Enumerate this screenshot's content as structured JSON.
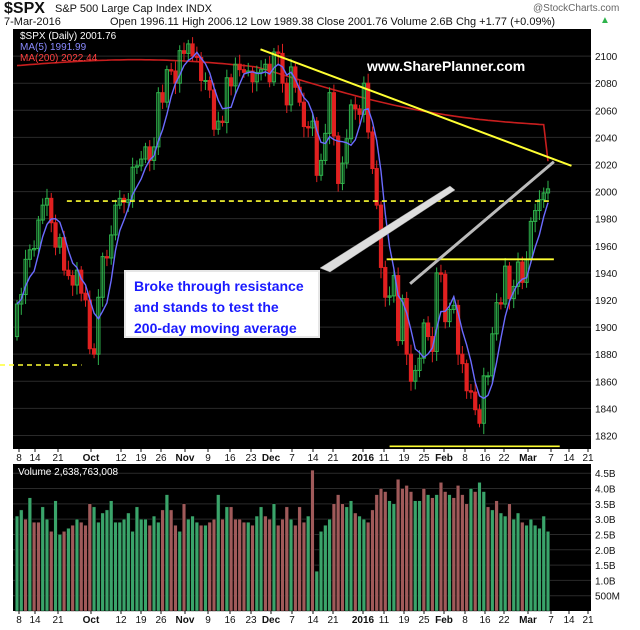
{
  "header": {
    "symbol": "$SPX",
    "name": "S&P 500 Large Cap Index",
    "exchange": "INDX",
    "credit": "@StockCharts.com",
    "date": "7-Mar-2016",
    "quote": "Open 1996.11  High 2006.12  Low 1989.38  Close 2001.76  Volume 2.6B  Chg +1.77 (+0.09%)",
    "change_icon": "up-triangle-icon"
  },
  "legend": {
    "price": "$SPX (Daily) 2001.76",
    "ma5": "MA(5) 1991.99",
    "ma200": "MA(200) 2022.44",
    "volume": "Volume 2,638,763,008"
  },
  "watermark": "www.SharePlanner.com",
  "annotation": [
    "Broke through resistance",
    "and stands to test the",
    "200-day moving average"
  ],
  "colors": {
    "background": "#000000",
    "up_candle": "#2eb34c",
    "down_candle": "#e02020",
    "ma5": "#6b6bff",
    "ma200": "#c81e1e",
    "trendline": "#ffff33",
    "volume_up": "#3aa46a",
    "volume_down": "#a05a5a",
    "annotation_text": "#1a1aff"
  },
  "chart_data": {
    "type": "candlestick",
    "price_axis": {
      "ticks": [
        1820,
        1840,
        1860,
        1880,
        1900,
        1920,
        1940,
        1960,
        1980,
        2000,
        2020,
        2040,
        2060,
        2080,
        2100
      ],
      "range": [
        1810,
        2120
      ]
    },
    "volume_axis": {
      "ticks": [
        "500M",
        "1.0B",
        "1.5B",
        "2.0B",
        "2.5B",
        "3.0B",
        "3.5B",
        "4.0B",
        "4.5B"
      ],
      "range": [
        0,
        4.8
      ]
    },
    "x_labels": [
      "8",
      "14",
      "21",
      "Oct",
      "12",
      "19",
      "26",
      "Nov",
      "9",
      "16",
      "23",
      "Dec",
      "7",
      "14",
      "21",
      "2016",
      "11",
      "19",
      "25",
      "Feb",
      "8",
      "16",
      "22",
      "Mar",
      "7",
      "14",
      "21"
    ],
    "bold_labels": [
      "Oct",
      "Nov",
      "Dec",
      "2016",
      "Feb",
      "Mar"
    ],
    "start_date": "2015-09-08",
    "end_date": "2016-03-07",
    "candles": [
      [
        1893,
        1917
      ],
      [
        1917,
        1924
      ],
      [
        1924,
        1950
      ],
      [
        1950,
        1957
      ],
      [
        1957,
        1958
      ],
      [
        1958,
        1979
      ],
      [
        1979,
        1990
      ],
      [
        1990,
        1995
      ],
      [
        1995,
        1977
      ],
      [
        1977,
        1959
      ],
      [
        1959,
        1966
      ],
      [
        1966,
        1942
      ],
      [
        1942,
        1938
      ],
      [
        1938,
        1931
      ],
      [
        1931,
        1942
      ],
      [
        1942,
        1925
      ],
      [
        1925,
        1920
      ],
      [
        1920,
        1884
      ],
      [
        1884,
        1880
      ],
      [
        1880,
        1922
      ],
      [
        1922,
        1952
      ],
      [
        1952,
        1951
      ],
      [
        1951,
        1968
      ],
      [
        1968,
        1990
      ],
      [
        1990,
        1995
      ],
      [
        1995,
        1992
      ],
      [
        1992,
        1994
      ],
      [
        1994,
        2018
      ],
      [
        2018,
        2019
      ],
      [
        2019,
        2024
      ],
      [
        2024,
        2033
      ],
      [
        2033,
        2023
      ],
      [
        2023,
        2033
      ],
      [
        2033,
        2073
      ],
      [
        2073,
        2066
      ],
      [
        2066,
        2090
      ],
      [
        2090,
        2089
      ],
      [
        2089,
        2080
      ],
      [
        2080,
        2104
      ],
      [
        2104,
        2102
      ],
      [
        2102,
        2109
      ],
      [
        2109,
        2100
      ],
      [
        2100,
        2099
      ],
      [
        2099,
        2082
      ],
      [
        2082,
        2082
      ],
      [
        2082,
        2075
      ],
      [
        2075,
        2046
      ],
      [
        2046,
        2052
      ],
      [
        2052,
        2051
      ],
      [
        2051,
        2084
      ],
      [
        2084,
        2078
      ],
      [
        2078,
        2094
      ],
      [
        2094,
        2090
      ],
      [
        2090,
        2088
      ],
      [
        2088,
        2089
      ],
      [
        2089,
        2081
      ],
      [
        2081,
        2088
      ],
      [
        2088,
        2090
      ],
      [
        2090,
        2094
      ],
      [
        2094,
        2081
      ],
      [
        2081,
        2103
      ],
      [
        2103,
        2102
      ],
      [
        2102,
        2080
      ],
      [
        2080,
        2064
      ],
      [
        2064,
        2092
      ],
      [
        2092,
        2077
      ],
      [
        2077,
        2066
      ],
      [
        2066,
        2048
      ],
      [
        2048,
        2047
      ],
      [
        2047,
        2052
      ],
      [
        2052,
        2012
      ],
      [
        2012,
        2023
      ],
      [
        2023,
        2043
      ],
      [
        2043,
        2073
      ],
      [
        2073,
        2041
      ],
      [
        2041,
        2006
      ],
      [
        2006,
        2021
      ],
      [
        2021,
        2039
      ],
      [
        2039,
        2064
      ],
      [
        2064,
        2061
      ],
      [
        2061,
        2057
      ],
      [
        2057,
        2080
      ],
      [
        2080,
        2044
      ],
      [
        2044,
        2017
      ],
      [
        2017,
        1990
      ],
      [
        1990,
        1944
      ],
      [
        1944,
        1922
      ],
      [
        1922,
        1923
      ],
      [
        1923,
        1938
      ],
      [
        1938,
        1890
      ],
      [
        1890,
        1921
      ],
      [
        1921,
        1880
      ],
      [
        1880,
        1860
      ],
      [
        1860,
        1868
      ],
      [
        1868,
        1877
      ],
      [
        1877,
        1903
      ],
      [
        1903,
        1893
      ],
      [
        1893,
        1882
      ],
      [
        1882,
        1940
      ],
      [
        1940,
        1939
      ],
      [
        1939,
        1904
      ],
      [
        1904,
        1913
      ],
      [
        1913,
        1916
      ],
      [
        1916,
        1880
      ],
      [
        1880,
        1873
      ],
      [
        1873,
        1853
      ],
      [
        1853,
        1852
      ],
      [
        1852,
        1839
      ],
      [
        1839,
        1829
      ],
      [
        1829,
        1864
      ],
      [
        1864,
        1864
      ],
      [
        1864,
        1895
      ],
      [
        1895,
        1918
      ],
      [
        1918,
        1917
      ],
      [
        1917,
        1945
      ],
      [
        1945,
        1921
      ],
      [
        1921,
        1930
      ],
      [
        1930,
        1948
      ],
      [
        1948,
        1933
      ],
      [
        1933,
        1950
      ],
      [
        1950,
        1978
      ],
      [
        1978,
        1986
      ],
      [
        1986,
        1994
      ],
      [
        1994,
        1999
      ],
      [
        1999,
        2002
      ]
    ],
    "volume_billions": [
      3.1,
      3.3,
      3.0,
      3.7,
      2.9,
      2.9,
      3.4,
      3.0,
      2.6,
      3.6,
      2.5,
      2.6,
      2.7,
      2.8,
      3.0,
      2.9,
      2.8,
      3.5,
      3.4,
      2.9,
      3.2,
      3.3,
      3.6,
      2.9,
      2.9,
      3.0,
      3.2,
      2.6,
      3.4,
      3.0,
      3.0,
      2.8,
      3.1,
      2.9,
      3.3,
      3.8,
      3.3,
      2.8,
      2.6,
      3.5,
      3.0,
      3.1,
      2.9,
      2.8,
      2.8,
      2.9,
      3.0,
      3.8,
      3.0,
      3.4,
      3.4,
      3.0,
      3.0,
      2.9,
      2.9,
      2.8,
      3.1,
      3.4,
      3.1,
      3.0,
      3.5,
      2.8,
      3.0,
      3.4,
      3.0,
      2.8,
      3.4,
      2.9,
      3.1,
      4.6,
      1.3,
      2.6,
      2.8,
      3.0,
      3.5,
      3.8,
      3.5,
      3.4,
      3.6,
      3.2,
      3.1,
      3.0,
      2.9,
      3.3,
      3.8,
      4.0,
      3.9,
      3.6,
      3.5,
      4.3,
      4.0,
      4.1,
      3.9,
      3.6,
      3.6,
      4.0,
      3.8,
      3.7,
      3.8,
      4.2,
      3.9,
      3.8,
      3.7,
      4.1,
      3.8,
      3.5,
      4.0,
      3.9,
      4.2,
      3.9,
      3.4,
      3.3,
      3.6,
      3.2,
      3.1,
      3.5,
      3.0,
      3.2,
      2.9,
      2.8,
      3.0,
      2.8,
      2.7,
      3.1,
      2.6
    ],
    "volume_colors": "g,g,r,g,r,r,g,g,r,g,g,r,g,r,g,r,r,r,g,g,g,g,g,g,g,g,g,g,g,g,g,r,g,g,r,g,r,r,g,r,g,g,g,r,g,r,r,g,r,g,r,r,r,r,g,r,g,g,r,r,g,r,r,r,g,r,r,r,g,r,g,g,g,g,r,r,r,g,g,r,g,g,r,r,r,r,r,g,g,r,r,r,r,g,g,r,g,r,g,r,r,g,r,r,r,r,g,r,g,g,r,g,r,g,g,r,g,g,r,g,g,g,g,g,g",
    "annotation_lines": {
      "downtrend": {
        "from": [
          "2015-11-30",
          2105
        ],
        "to": [
          "2016-03-15",
          2019
        ]
      },
      "upper_support": {
        "from": [
          "2015-09-25",
          1993
        ],
        "to": [
          "2016-03-08",
          1993
        ],
        "style": "dashed"
      },
      "left_support": {
        "from": [
          "2015-08-20",
          1872
        ],
        "to": [
          "2015-09-30",
          1872
        ],
        "style": "dashed"
      },
      "resistance": {
        "from": [
          "2016-01-12",
          1950
        ],
        "to": [
          "2016-03-09",
          1950
        ]
      },
      "bottom": {
        "from": [
          "2016-01-13",
          1812
        ],
        "to": [
          "2016-03-11",
          1812
        ]
      },
      "rising_wedge": {
        "from": [
          "2016-01-20",
          1932
        ],
        "to": [
          "2016-03-09",
          2022
        ]
      }
    }
  }
}
